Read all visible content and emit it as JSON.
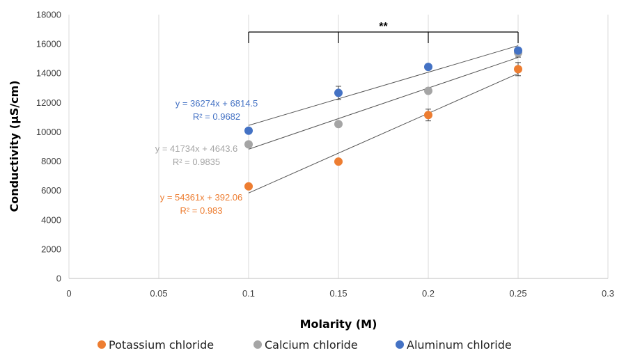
{
  "chart_data": {
    "type": "scatter",
    "xlabel": "Molarity (M)",
    "ylabel": "Conductivity (µS/cm)",
    "xlim": [
      0,
      0.3
    ],
    "ylim": [
      0,
      18000
    ],
    "x_ticks": [
      "0",
      "0.05",
      "0.1",
      "0.15",
      "0.2",
      "0.25",
      "0.3"
    ],
    "y_ticks": [
      "0",
      "2000",
      "4000",
      "6000",
      "8000",
      "10000",
      "12000",
      "14000",
      "16000",
      "18000"
    ],
    "grid": "vertical",
    "legend_position": "bottom",
    "significance": {
      "label": "**",
      "x": [
        0.1,
        0.15,
        0.2,
        0.25
      ]
    },
    "series": [
      {
        "name": "Potassium chloride",
        "color": "#ED7D31",
        "x": [
          0.1,
          0.15,
          0.2,
          0.25
        ],
        "y": [
          6280,
          7970,
          11150,
          14280
        ],
        "error": [
          0,
          0,
          400,
          450
        ],
        "equation": "y = 54361x + 392.06",
        "r2": "R² = 0.983",
        "slope": 54361,
        "intercept": 392.06
      },
      {
        "name": "Calcium chloride",
        "color": "#A5A5A5",
        "x": [
          0.1,
          0.15,
          0.2,
          0.25
        ],
        "y": [
          9150,
          10530,
          12800,
          15400
        ],
        "error": [
          0,
          0,
          0,
          300
        ],
        "equation": "y = 41734x + 4643.6",
        "r2": "R² = 0.9835",
        "slope": 41734,
        "intercept": 4643.6
      },
      {
        "name": "Aluminum chloride",
        "color": "#4472C4",
        "x": [
          0.1,
          0.15,
          0.2,
          0.25
        ],
        "y": [
          10080,
          12660,
          14430,
          15550
        ],
        "error": [
          0,
          450,
          0,
          0
        ],
        "equation": "y = 36274x + 6814.5",
        "r2": "R² = 0.9682",
        "slope": 36274,
        "intercept": 6814.5
      }
    ]
  }
}
